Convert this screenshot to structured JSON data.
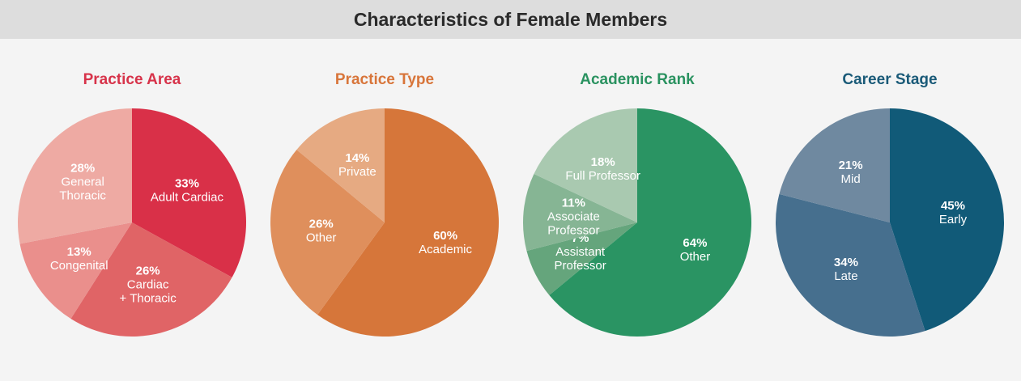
{
  "header": {
    "title": "Characteristics of Female Members"
  },
  "chart_data": [
    {
      "type": "pie",
      "title": "Practice Area",
      "title_color": "#d7334a",
      "slices": [
        {
          "label": [
            "Adult Cardiac"
          ],
          "value": 33,
          "pct_text": "33%",
          "color": "#d93048"
        },
        {
          "label": [
            "Cardiac",
            "+ Thoracic"
          ],
          "value": 26,
          "pct_text": "26%",
          "color": "#e06466"
        },
        {
          "label": [
            "Congenital"
          ],
          "value": 13,
          "pct_text": "13%",
          "color": "#ea8f8c"
        },
        {
          "label": [
            "General",
            "Thoracic"
          ],
          "value": 28,
          "pct_text": "28%",
          "color": "#eeaaa3"
        }
      ]
    },
    {
      "type": "pie",
      "title": "Practice Type",
      "title_color": "#d8753a",
      "slices": [
        {
          "label": [
            "Academic"
          ],
          "value": 60,
          "pct_text": "60%",
          "color": "#d6763a"
        },
        {
          "label": [
            "Other"
          ],
          "value": 26,
          "pct_text": "26%",
          "color": "#df8f5c"
        },
        {
          "label": [
            "Private"
          ],
          "value": 14,
          "pct_text": "14%",
          "color": "#e6aa82"
        }
      ]
    },
    {
      "type": "pie",
      "title": "Academic Rank",
      "title_color": "#2a9260",
      "slices": [
        {
          "label": [
            "Other"
          ],
          "value": 64,
          "pct_text": "64%",
          "color": "#2a9463"
        },
        {
          "label": [
            "Assistant",
            "Professor"
          ],
          "value": 7,
          "pct_text": "7%",
          "color": "#65a57c"
        },
        {
          "label": [
            "Associate",
            "Professor"
          ],
          "value": 11,
          "pct_text": "11%",
          "color": "#86b594"
        },
        {
          "label": [
            "Full Professor"
          ],
          "value": 18,
          "pct_text": "18%",
          "color": "#a9c9b0"
        }
      ]
    },
    {
      "type": "pie",
      "title": "Career Stage",
      "title_color": "#1a5a78",
      "slices": [
        {
          "label": [
            "Early"
          ],
          "value": 45,
          "pct_text": "45%",
          "color": "#115a78"
        },
        {
          "label": [
            "Late"
          ],
          "value": 34,
          "pct_text": "34%",
          "color": "#466f8e"
        },
        {
          "label": [
            "Mid"
          ],
          "value": 21,
          "pct_text": "21%",
          "color": "#6f89a0"
        }
      ]
    }
  ]
}
